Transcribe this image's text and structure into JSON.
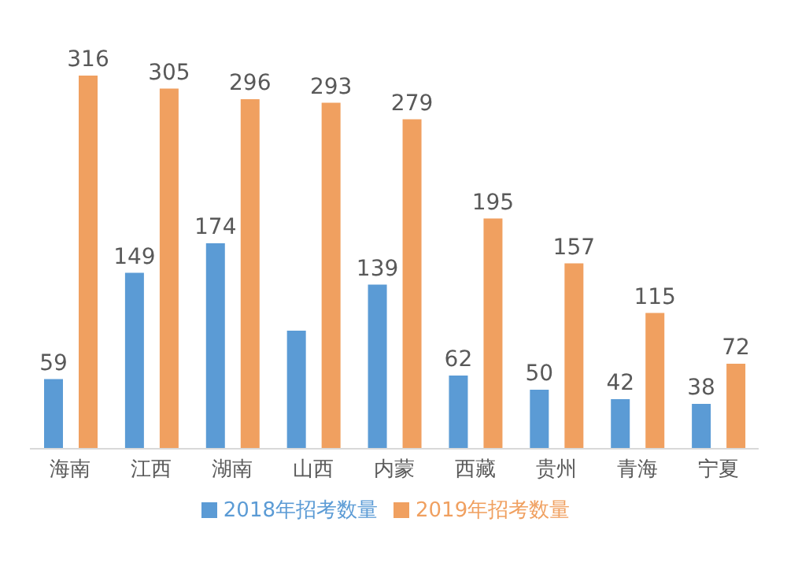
{
  "chart_data": {
    "type": "bar",
    "categories": [
      "海南",
      "江西",
      "湖南",
      "山西",
      "内蒙",
      "西藏",
      "贵州",
      "青海",
      "宁夏"
    ],
    "series": [
      {
        "name": "2018年招考数量",
        "color": "#5b9bd5",
        "values": [
          59,
          149,
          174,
          100,
          139,
          62,
          50,
          42,
          38
        ],
        "value_labels": [
          "59",
          "149",
          "174",
          null,
          "139",
          "62",
          "50",
          "42",
          "38"
        ]
      },
      {
        "name": "2019年招考数量",
        "color": "#f0a060",
        "values": [
          316,
          305,
          296,
          293,
          279,
          195,
          157,
          115,
          72
        ],
        "value_labels": [
          "316",
          "305",
          "296",
          "293",
          "279",
          "195",
          "157",
          "115",
          "72"
        ]
      }
    ],
    "tick_labels": "x",
    "legend": "bottom"
  }
}
